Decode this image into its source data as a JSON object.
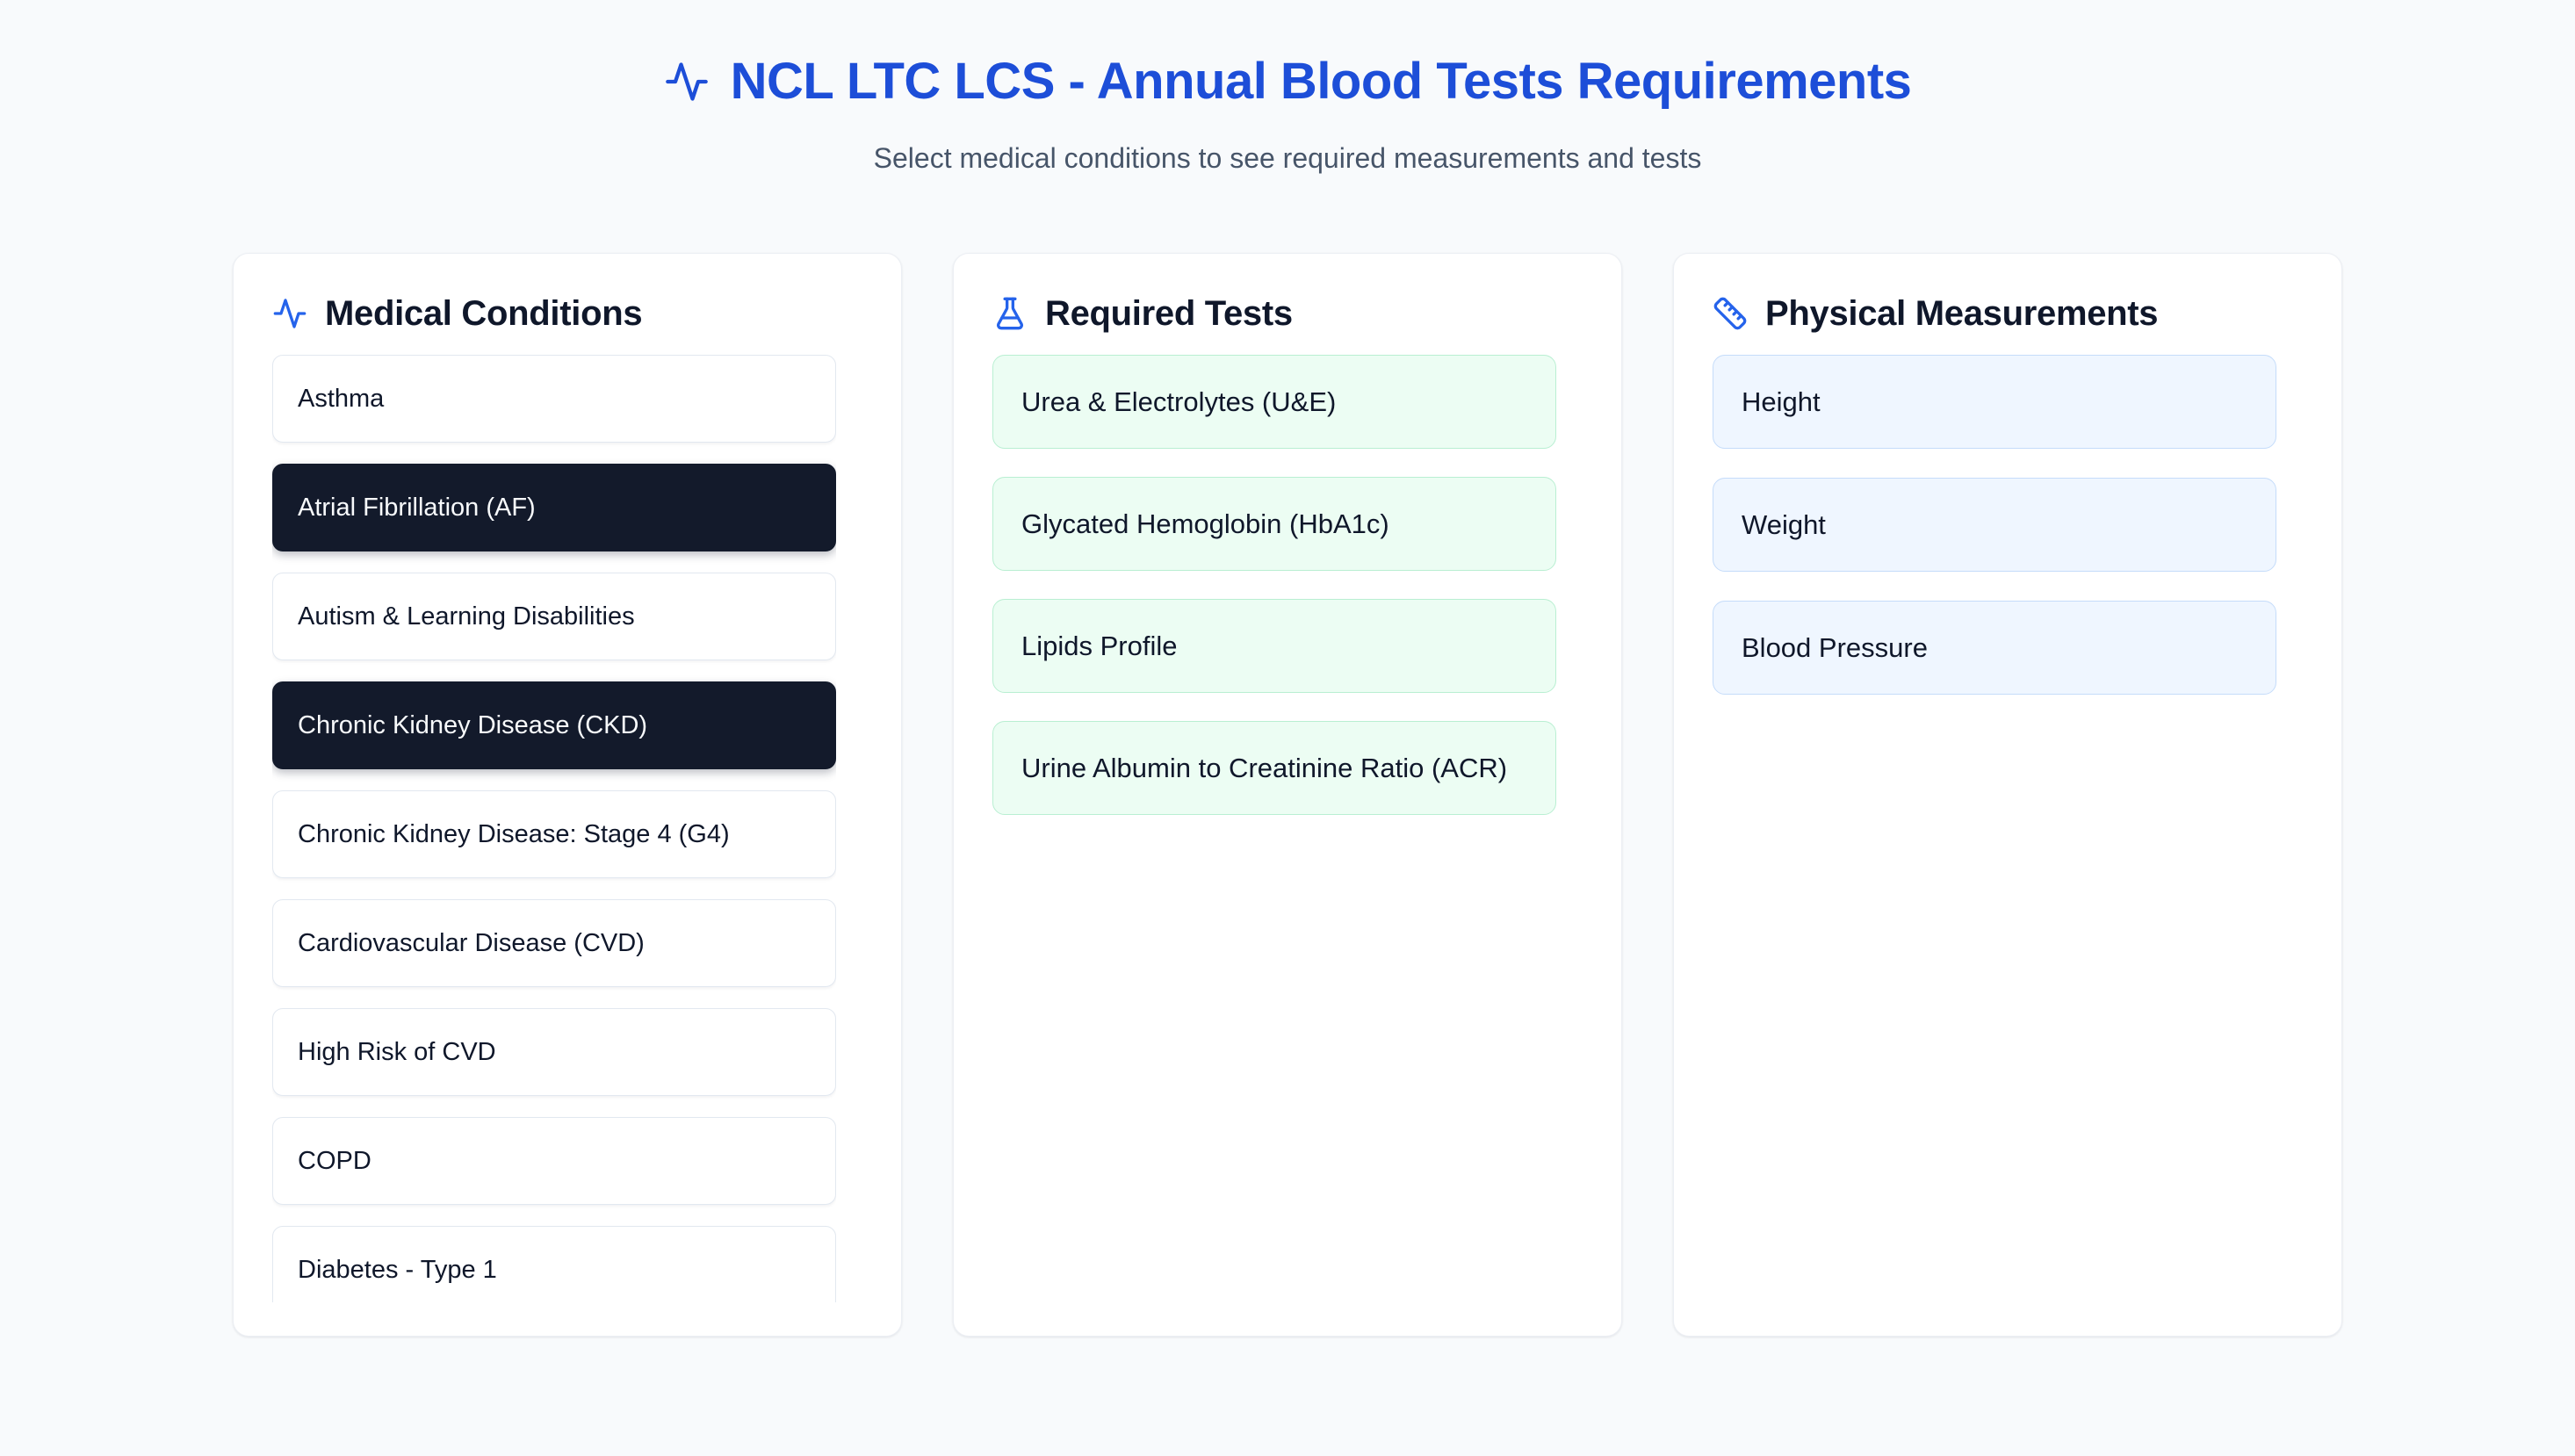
{
  "header": {
    "title": "NCL LTC LCS - Annual Blood Tests Requirements",
    "subtitle": "Select medical conditions to see required measurements and tests"
  },
  "panels": {
    "conditions": {
      "title": "Medical Conditions",
      "icon": "activity-icon",
      "items": [
        {
          "label": "Asthma",
          "selected": false
        },
        {
          "label": "Atrial Fibrillation (AF)",
          "selected": true
        },
        {
          "label": "Autism & Learning Disabilities",
          "selected": false
        },
        {
          "label": "Chronic Kidney Disease (CKD)",
          "selected": true
        },
        {
          "label": "Chronic Kidney Disease: Stage 4 (G4)",
          "selected": false
        },
        {
          "label": "Cardiovascular Disease (CVD)",
          "selected": false
        },
        {
          "label": "High Risk of CVD",
          "selected": false
        },
        {
          "label": "COPD",
          "selected": false
        },
        {
          "label": "Diabetes - Type 1",
          "selected": false
        }
      ]
    },
    "tests": {
      "title": "Required Tests",
      "icon": "flask-icon",
      "items": [
        "Urea & Electrolytes (U&E)",
        "Glycated Hemoglobin (HbA1c)",
        "Lipids Profile",
        "Urine Albumin to Creatinine Ratio (ACR)"
      ]
    },
    "measurements": {
      "title": "Physical Measurements",
      "icon": "ruler-icon",
      "items": [
        "Height",
        "Weight",
        "Blood Pressure"
      ]
    }
  },
  "colors": {
    "page_background": "#f8fafc",
    "brand_blue": "#1d4ed8",
    "icon_blue": "#2563eb",
    "heading_text": "#0f172a",
    "subtitle_text": "#475569",
    "selected_condition_background": "#131a2b",
    "selected_condition_text": "#f8fafc",
    "test_card_background": "#ecfdf3",
    "test_card_border": "#b9efd2",
    "measurement_card_background": "#eff6ff",
    "measurement_card_border": "#c5dcfa",
    "card_border": "#e2e8f0"
  }
}
